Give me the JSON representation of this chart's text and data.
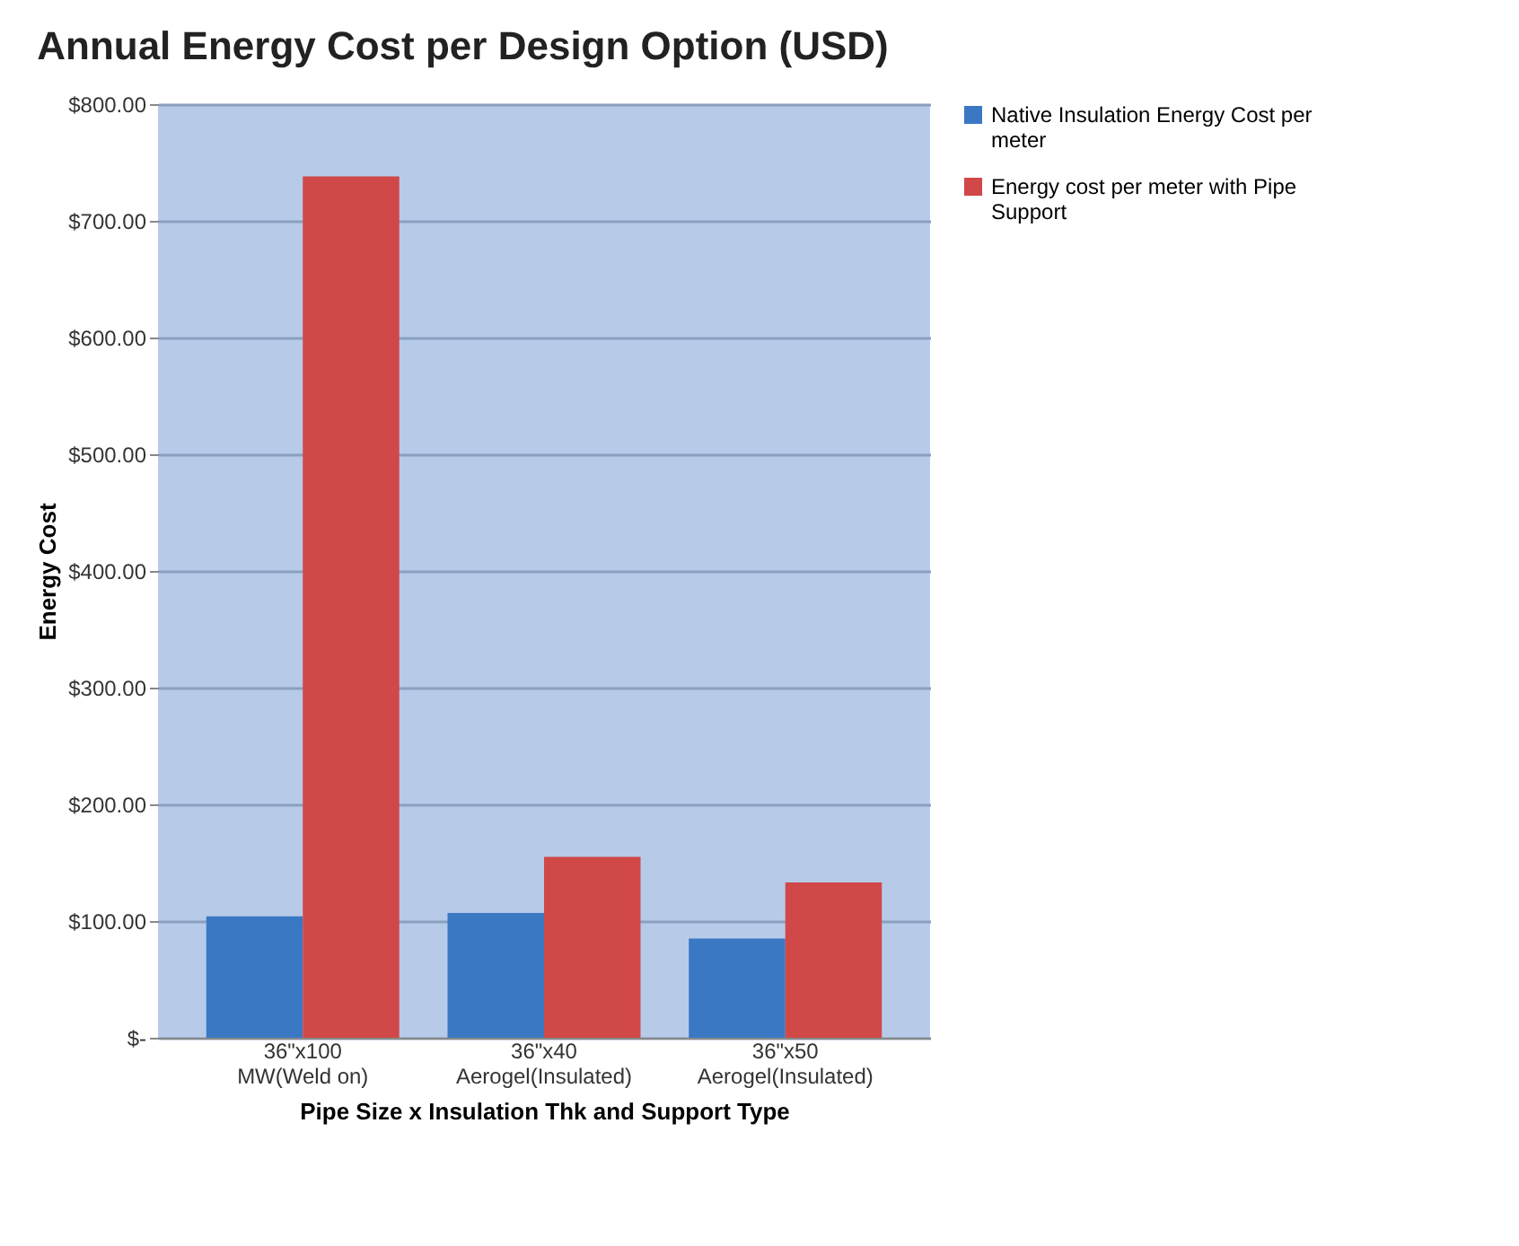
{
  "chart_data": {
    "type": "bar",
    "title": "Annual Energy Cost per Design Option (USD)",
    "xlabel": "Pipe Size x Insulation Thk and Support Type",
    "ylabel": "Energy Cost",
    "categories": [
      "36\"x100\nMW(Weld on)",
      "36\"x40\nAerogel(Insulated)",
      "36\"x50\nAerogel(Insulated)"
    ],
    "series": [
      {
        "name": "Native Insulation Energy Cost per meter",
        "color": "#3a78c4",
        "values": [
          104,
          107,
          85
        ]
      },
      {
        "name": "Energy cost per meter with Pipe Support",
        "color": "#d04848",
        "values": [
          738,
          155,
          133
        ]
      }
    ],
    "ylim": [
      0,
      800
    ],
    "yticks": [
      {
        "value": 0,
        "label": "$-"
      },
      {
        "value": 100,
        "label": "$100.00"
      },
      {
        "value": 200,
        "label": "$200.00"
      },
      {
        "value": 300,
        "label": "$300.00"
      },
      {
        "value": 400,
        "label": "$400.00"
      },
      {
        "value": 500,
        "label": "$500.00"
      },
      {
        "value": 600,
        "label": "$600.00"
      },
      {
        "value": 700,
        "label": "$700.00"
      },
      {
        "value": 800,
        "label": "$800.00"
      }
    ],
    "grid": "y",
    "legend": "right"
  }
}
